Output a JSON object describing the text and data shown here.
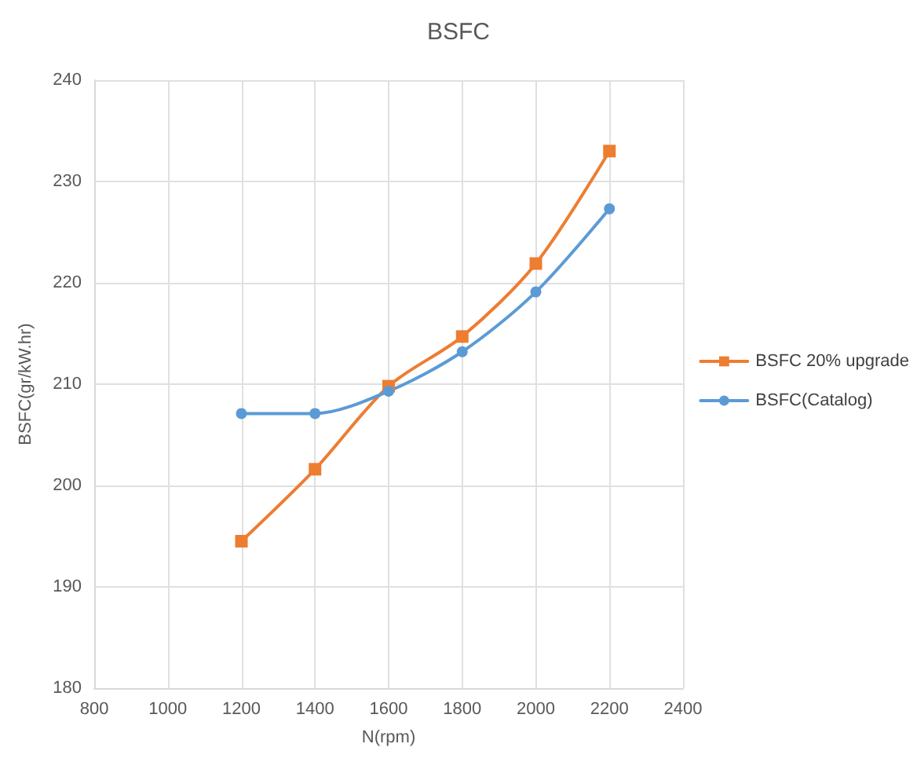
{
  "chart_data": {
    "type": "line",
    "title": "BSFC",
    "xlabel": "N(rpm)",
    "ylabel": "BSFC(gr/kW.hr)",
    "x": [
      1200,
      1400,
      1600,
      1800,
      2000,
      2200
    ],
    "series": [
      {
        "name": "BSFC 20% upgrade",
        "color": "#ed7d31",
        "marker": "square",
        "values": [
          194.5,
          201.6,
          209.8,
          214.7,
          221.9,
          233.0
        ]
      },
      {
        "name": "BSFC(Catalog)",
        "color": "#5b9bd5",
        "marker": "circle",
        "values": [
          207.1,
          207.1,
          209.3,
          213.2,
          219.1,
          227.3
        ]
      }
    ],
    "xlim": [
      800,
      2400
    ],
    "xticks": [
      800,
      1000,
      1200,
      1400,
      1600,
      1800,
      2000,
      2200,
      2400
    ],
    "ylim": [
      180,
      240
    ],
    "yticks": [
      180,
      190,
      200,
      210,
      220,
      230,
      240
    ],
    "grid": true,
    "legend": "right"
  }
}
